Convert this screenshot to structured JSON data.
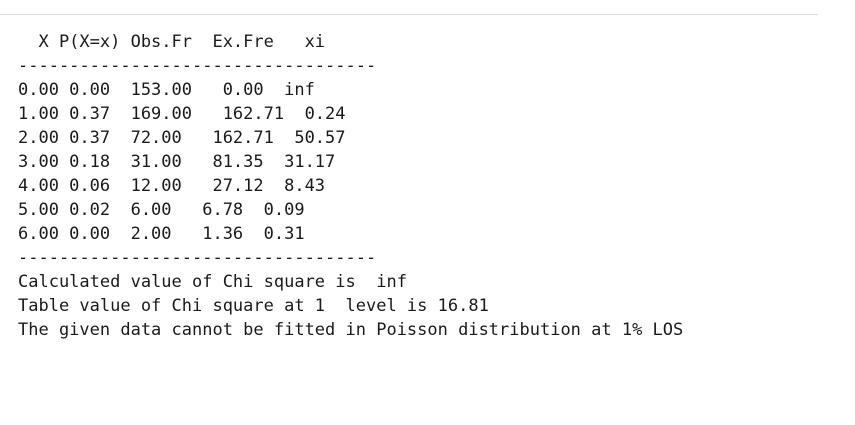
{
  "output": {
    "header": "  X P(X=x) Obs.Fr  Ex.Fre   xi",
    "separator": "-----------------------------------",
    "rows": [
      "0.00 0.00  153.00   0.00  inf",
      "1.00 0.37  169.00   162.71  0.24",
      "2.00 0.37  72.00   162.71  50.57",
      "3.00 0.18  31.00   81.35  31.17",
      "4.00 0.06  12.00   27.12  8.43",
      "5.00 0.02  6.00   6.78  0.09",
      "6.00 0.00  2.00   1.36  0.31"
    ],
    "separator_bottom": "-----------------------------------",
    "result_lines": [
      "Calculated value of Chi square is  inf",
      "Table value of Chi square at 1  level is 16.81",
      "The given data cannot be fitted in Poisson distribution at 1% LOS"
    ]
  }
}
